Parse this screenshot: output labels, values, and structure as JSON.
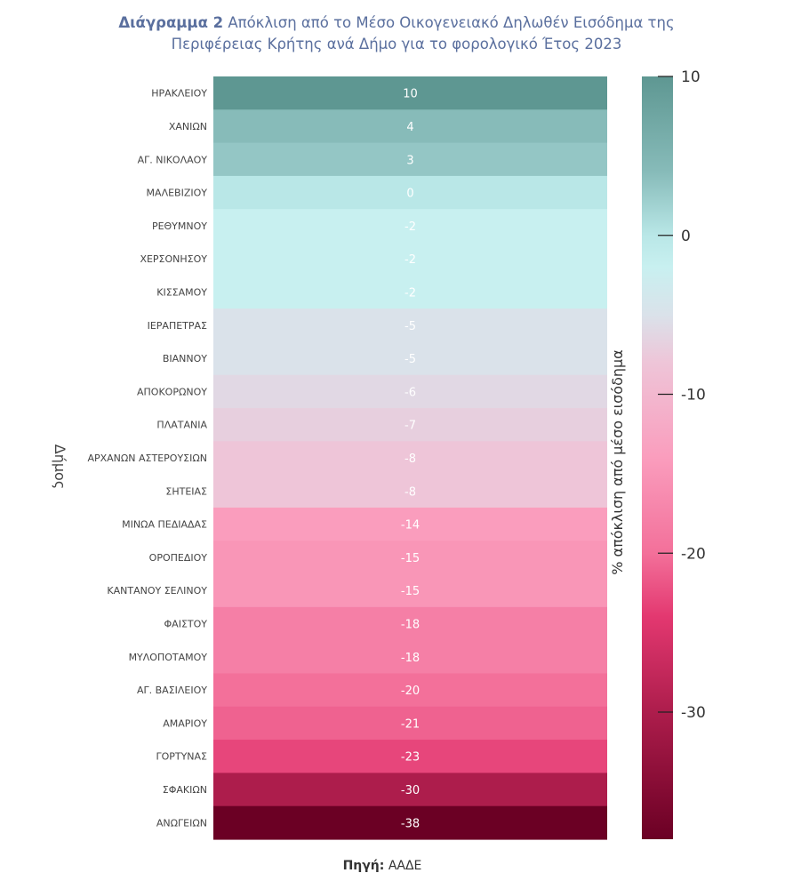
{
  "title": {
    "lead": "Διάγραμμα  2",
    "line1": " Απόκλιση από το Μέσο Οικογενειακό Δηλωθέν Εισόδημα της",
    "line2": "Περιφέρειας Κρήτης ανά Δήμο για το φορολογικό Έτος 2023"
  },
  "source": {
    "label": "Πηγή:",
    "value": " ΑΑΔΕ"
  },
  "chart_data": {
    "type": "heatmap",
    "ylabel": "Δήμος",
    "colorbar_label": "% απόκλιση από μέσο εισόδημα",
    "colorbar_ticks": [
      10,
      0,
      -10,
      -20,
      -30
    ],
    "color_range": [
      -38,
      10
    ],
    "categories": [
      "ΗΡΑΚΛΕΙΟΥ",
      "ΧΑΝΙΩΝ",
      "ΑΓ. ΝΙΚΟΛΑΟΥ",
      "ΜΑΛΕΒΙΖΙΟΥ",
      "ΡΕΘΥΜΝΟΥ",
      "ΧΕΡΣΟΝΗΣΟΥ",
      "ΚΙΣΣΑΜΟΥ",
      "ΙΕΡΑΠΕΤΡΑΣ",
      "ΒΙΑΝΝΟΥ",
      "ΑΠΟΚΟΡΩΝΟΥ",
      "ΠΛΑΤΑΝΙΑ",
      "ΑΡΧΑΝΩΝ ΑΣΤΕΡΟΥΣΙΩΝ",
      "ΣΗΤΕΙΑΣ",
      "ΜΙΝΩΑ ΠΕΔΙΑΔΑΣ",
      "ΟΡΟΠΕΔΙΟΥ",
      "ΚΑΝΤΑΝΟΥ ΣΕΛΙΝΟΥ",
      "ΦΑΙΣΤΟΥ",
      "ΜΥΛΟΠΟΤΑΜΟΥ",
      "ΑΓ. ΒΑΣΙΛΕΙΟΥ",
      "ΑΜΑΡΙΟΥ",
      "ΓΟΡΤΥΝΑΣ",
      "ΣΦΑΚΙΩΝ",
      "ΑΝΩΓΕΙΩΝ"
    ],
    "values": [
      10,
      4,
      3,
      0,
      -2,
      -2,
      -2,
      -5,
      -5,
      -6,
      -7,
      -8,
      -8,
      -14,
      -15,
      -15,
      -18,
      -18,
      -20,
      -21,
      -23,
      -30,
      -38
    ],
    "colorscale": [
      {
        "v": 10,
        "color": "#5e9792"
      },
      {
        "v": 4,
        "color": "#87bbb9"
      },
      {
        "v": 0,
        "color": "#b9e7e7"
      },
      {
        "v": -2,
        "color": "#c8f0f0"
      },
      {
        "v": -5,
        "color": "#dae2ea"
      },
      {
        "v": -8,
        "color": "#eec5d8"
      },
      {
        "v": -14,
        "color": "#fa9dbd"
      },
      {
        "v": -20,
        "color": "#f3709a"
      },
      {
        "v": -24,
        "color": "#e33870"
      },
      {
        "v": -30,
        "color": "#ad1d4c"
      },
      {
        "v": -38,
        "color": "#6b0024"
      }
    ]
  }
}
